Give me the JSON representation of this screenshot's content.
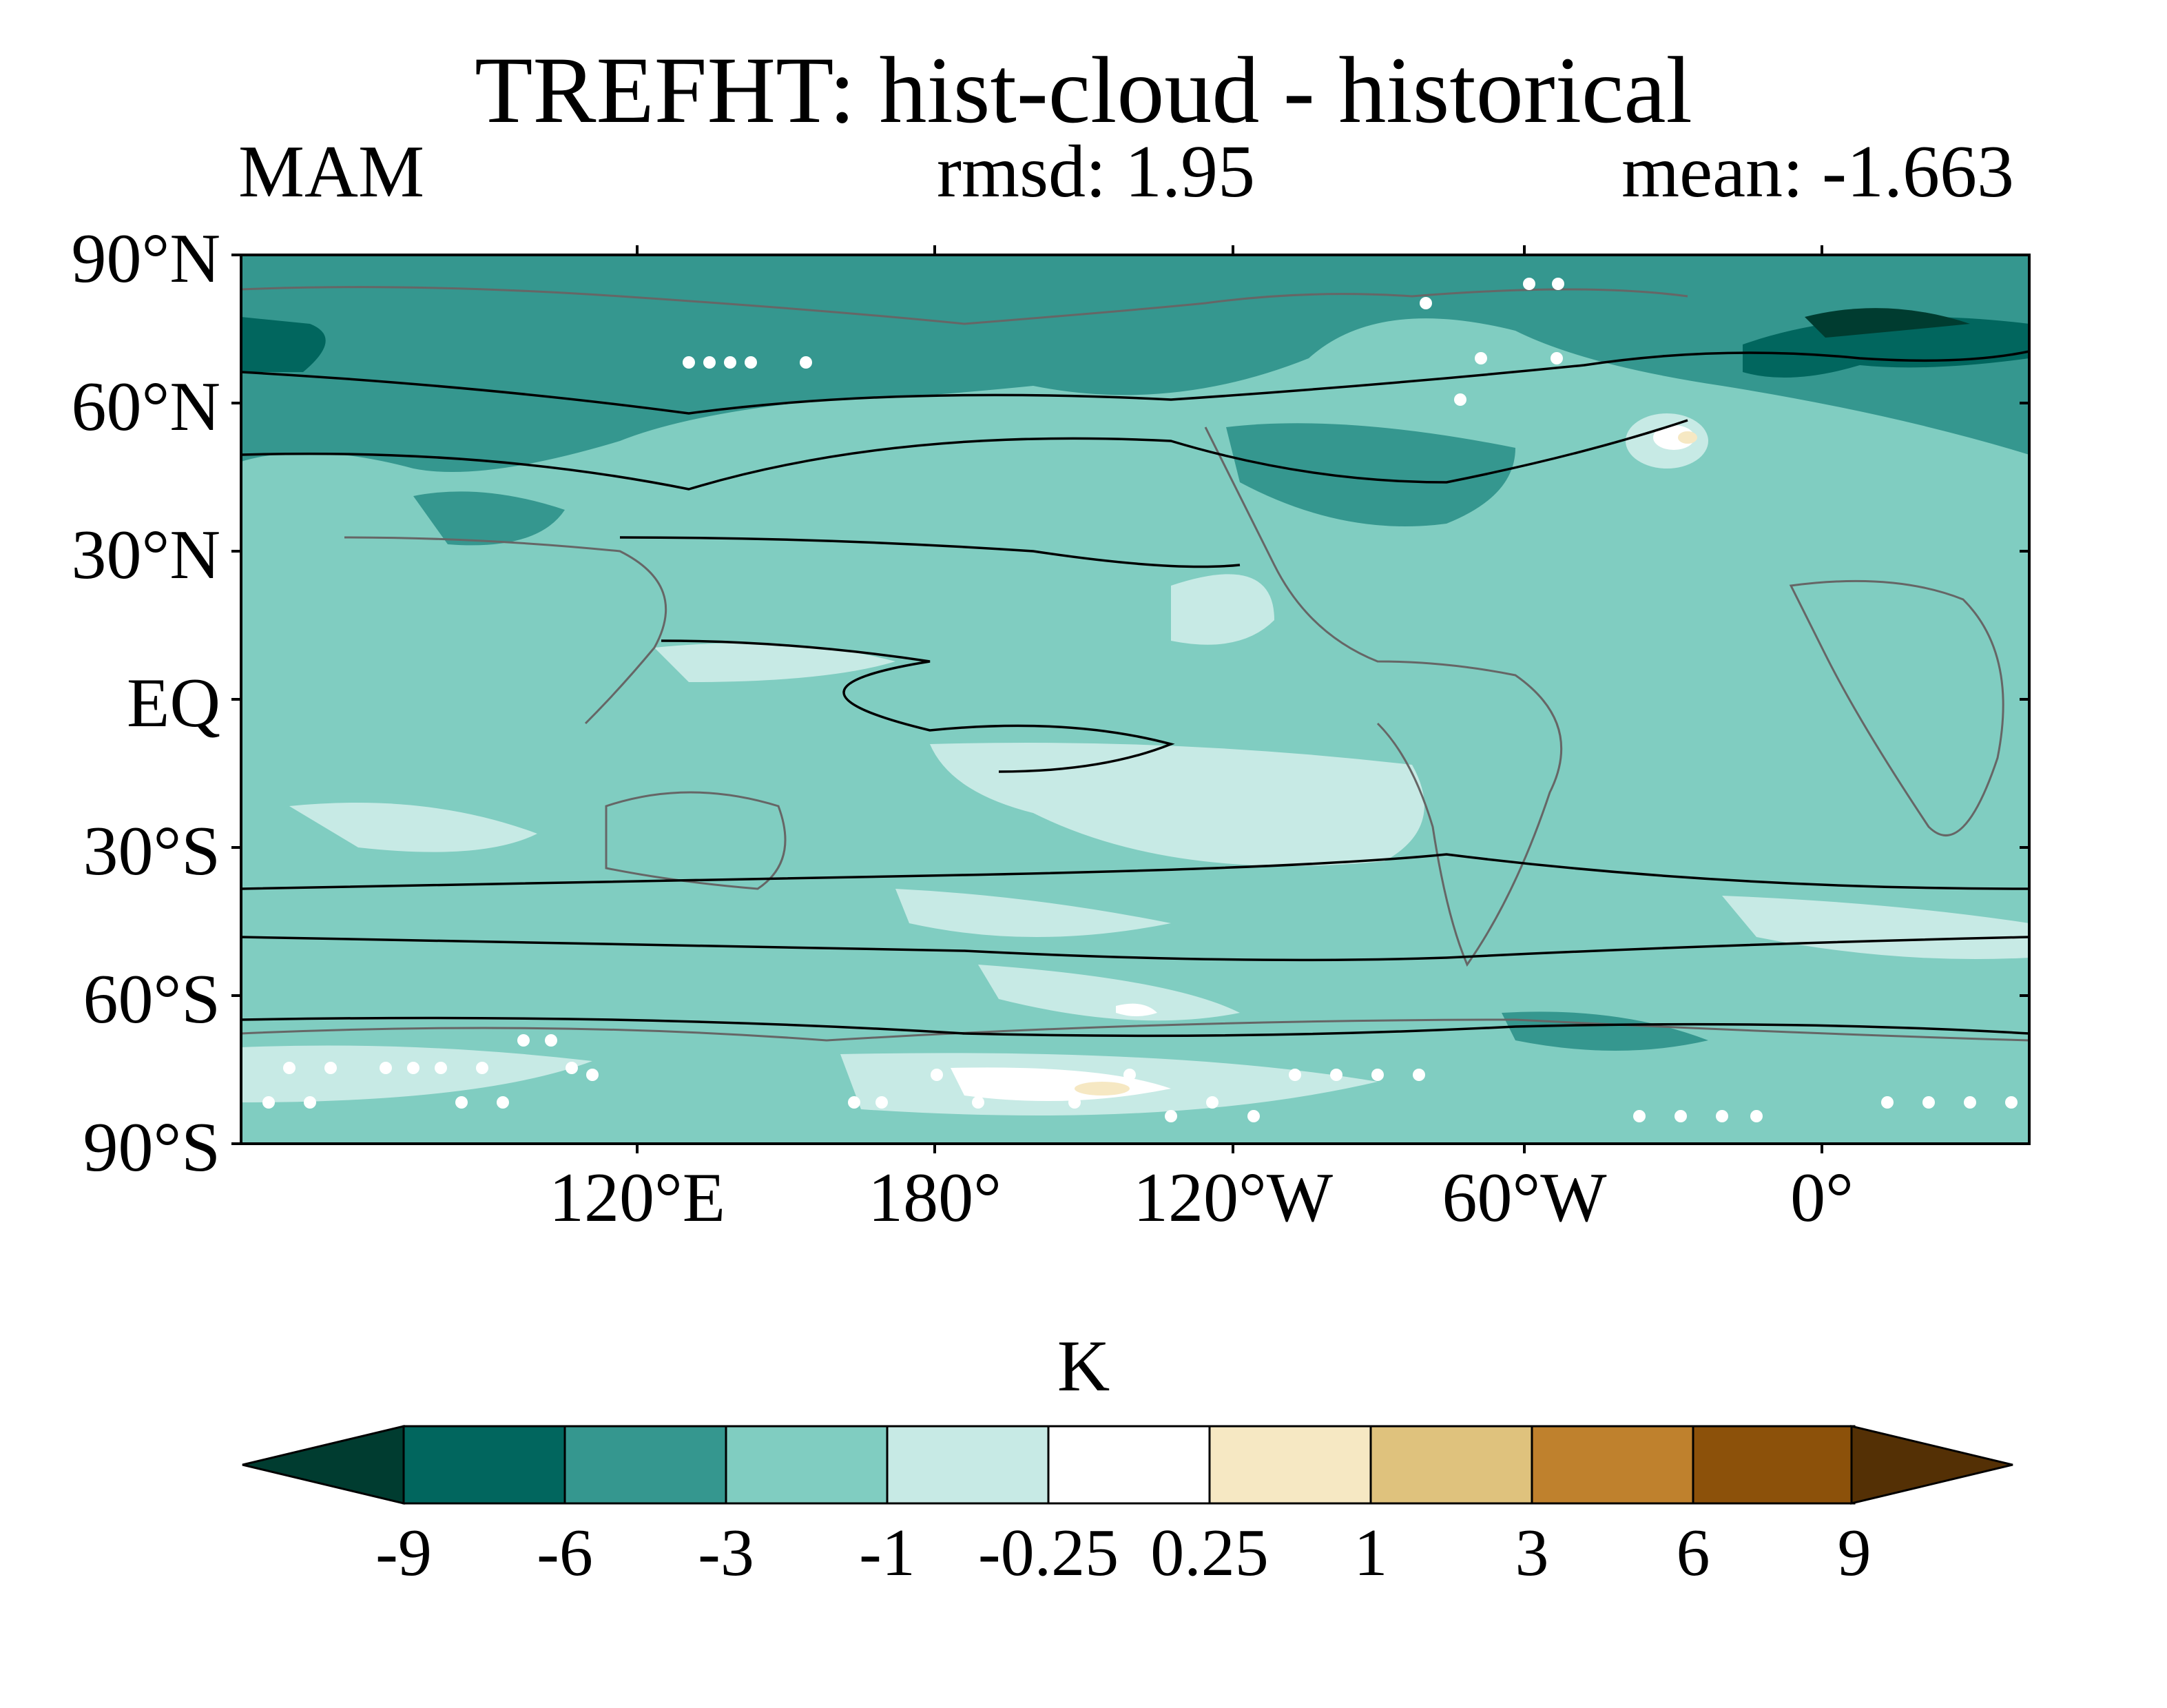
{
  "header": {
    "title": "TREFHT: hist-cloud - historical",
    "season": "MAM",
    "rmsd": "rmsd: 1.95",
    "mean": "mean: -1.663"
  },
  "map": {
    "projection": "cylindrical equidistant, Pacific-centered",
    "field": "near-surface air temperature difference",
    "lat_ticks": [
      "90°N",
      "60°N",
      "30°N",
      "EQ",
      "30°S",
      "60°S",
      "90°S"
    ],
    "lon_ticks": [
      "120°E",
      "180°",
      "120°W",
      "60°W",
      "0°"
    ],
    "colors": {
      "background_ocean": "#80cdc1",
      "light_band": "#c7eae5",
      "dark_band": "#35978f",
      "darkest": "#01665e",
      "positive": "#f6e8c3",
      "stipple": "#ffffff",
      "coast": "#666666",
      "contour": "#000000"
    }
  },
  "colorbar": {
    "unit": "K",
    "labels": [
      "-9",
      "-6",
      "-3",
      "-1",
      "-0.25",
      "0.25",
      "1",
      "3",
      "6",
      "9"
    ],
    "colors": [
      "#003c30",
      "#01665e",
      "#35978f",
      "#80cdc1",
      "#c7eae5",
      "#ffffff",
      "#f6e8c3",
      "#dfc27d",
      "#bf812d",
      "#8c510a",
      "#543005"
    ]
  }
}
